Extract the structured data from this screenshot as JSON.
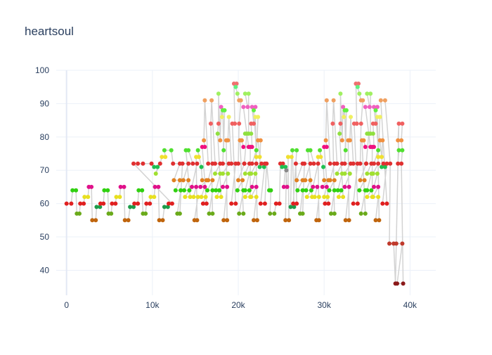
{
  "chart_data": {
    "type": "scatter",
    "title": "heartsoul",
    "xlabel": "",
    "ylabel": "",
    "xlim": [
      -1200,
      43000
    ],
    "ylim": [
      32.5,
      100
    ],
    "x_ticks": [
      0,
      10000,
      20000,
      30000,
      40000
    ],
    "x_tick_labels": [
      "0",
      "10k",
      "20k",
      "30k",
      "40k"
    ],
    "y_ticks": [
      40,
      50,
      60,
      70,
      80,
      90,
      100
    ],
    "y_tick_labels": [
      "40",
      "50",
      "60",
      "70",
      "80",
      "90",
      "100"
    ],
    "grid": true,
    "legend": "none",
    "mode": "lines+markers",
    "line_color": "#d3d3d3",
    "note_colors": {
      "36": "#8b1a1a",
      "48": "#c0392b",
      "55": "#c0650d",
      "57": "#6aaa1a",
      "59": "#1e9c4a",
      "60": "#e02020",
      "62": "#e8e020",
      "64": "#30d010",
      "65": "#e0108a",
      "67": "#e08020",
      "69": "#a0e030",
      "71": "#20c050",
      "72": "#e03030",
      "74": "#f0e030",
      "76": "#50e030",
      "77": "#f01080",
      "79": "#f09040",
      "81": "#90e040",
      "84": "#f06060",
      "86": "#f0f060",
      "88": "#60f040",
      "89": "#f060c0",
      "91": "#f0a060",
      "93": "#a0f060",
      "95": "#60f080",
      "96": "#f07070"
    },
    "points": [
      [
        0,
        60
      ],
      [
        550,
        60
      ],
      [
        700,
        64
      ],
      [
        1100,
        64
      ],
      [
        1200,
        57
      ],
      [
        1500,
        57
      ],
      [
        1600,
        60
      ],
      [
        2000,
        60
      ],
      [
        2100,
        62
      ],
      [
        2500,
        62
      ],
      [
        2600,
        65
      ],
      [
        2900,
        65
      ],
      [
        3000,
        55
      ],
      [
        3400,
        55
      ],
      [
        3500,
        59
      ],
      [
        3900,
        59
      ],
      [
        3950,
        60
      ],
      [
        4300,
        60
      ],
      [
        4400,
        64
      ],
      [
        4800,
        64
      ],
      [
        4900,
        57
      ],
      [
        5200,
        57
      ],
      [
        5300,
        60
      ],
      [
        5700,
        60
      ],
      [
        5800,
        62
      ],
      [
        6200,
        62
      ],
      [
        6300,
        65
      ],
      [
        6700,
        65
      ],
      [
        6800,
        55
      ],
      [
        7200,
        55
      ],
      [
        7400,
        59
      ],
      [
        7800,
        59
      ],
      [
        7900,
        60
      ],
      [
        8300,
        60
      ],
      [
        8400,
        64
      ],
      [
        8800,
        64
      ],
      [
        8900,
        57
      ],
      [
        9200,
        57
      ],
      [
        9300,
        60
      ],
      [
        9700,
        60
      ],
      [
        9800,
        62
      ],
      [
        10200,
        62
      ],
      [
        10300,
        65
      ],
      [
        10700,
        65
      ],
      [
        10800,
        55
      ],
      [
        11200,
        55
      ],
      [
        11400,
        59
      ],
      [
        11800,
        59
      ],
      [
        11900,
        60
      ],
      [
        12300,
        60
      ],
      [
        7800,
        72
      ],
      [
        8300,
        72
      ],
      [
        8900,
        72
      ],
      [
        9900,
        72
      ],
      [
        10200,
        71
      ],
      [
        10600,
        71
      ],
      [
        10400,
        69
      ],
      [
        10900,
        72
      ],
      [
        11100,
        74
      ],
      [
        11500,
        74
      ],
      [
        11400,
        76
      ],
      [
        12200,
        76
      ],
      [
        12400,
        72
      ],
      [
        13200,
        72
      ],
      [
        12500,
        67
      ],
      [
        13200,
        67
      ],
      [
        12700,
        64
      ],
      [
        13300,
        64
      ],
      [
        12900,
        57
      ],
      [
        13200,
        57
      ],
      [
        13500,
        72
      ],
      [
        14200,
        72
      ],
      [
        13600,
        67
      ],
      [
        14200,
        67
      ],
      [
        13700,
        64
      ],
      [
        14300,
        64
      ],
      [
        13800,
        62
      ],
      [
        14400,
        62
      ],
      [
        13900,
        76
      ],
      [
        14200,
        76
      ],
      [
        14700,
        72
      ],
      [
        15200,
        72
      ],
      [
        14600,
        65
      ],
      [
        15100,
        65
      ],
      [
        14800,
        62
      ],
      [
        15300,
        62
      ],
      [
        14900,
        55
      ],
      [
        15200,
        55
      ],
      [
        15100,
        74
      ],
      [
        15400,
        74
      ],
      [
        15300,
        76
      ],
      [
        15700,
        71
      ],
      [
        15800,
        67
      ],
      [
        16300,
        67
      ],
      [
        15600,
        65
      ],
      [
        16100,
        65
      ],
      [
        15700,
        62
      ],
      [
        16200,
        62
      ],
      [
        15900,
        60
      ],
      [
        16300,
        60
      ],
      [
        15800,
        77
      ],
      [
        16100,
        77
      ],
      [
        16000,
        79
      ],
      [
        16100,
        91
      ],
      [
        16500,
        72
      ],
      [
        17000,
        72
      ],
      [
        16500,
        67
      ],
      [
        17000,
        67
      ],
      [
        16400,
        64
      ],
      [
        17000,
        64
      ],
      [
        16600,
        57
      ],
      [
        17000,
        57
      ],
      [
        16800,
        84
      ],
      [
        16900,
        91
      ],
      [
        17300,
        72
      ],
      [
        17900,
        72
      ],
      [
        17300,
        69
      ],
      [
        17900,
        69
      ],
      [
        17400,
        64
      ],
      [
        17800,
        64
      ],
      [
        17500,
        62
      ],
      [
        18000,
        62
      ],
      [
        17600,
        81
      ],
      [
        17700,
        84
      ],
      [
        17700,
        93
      ],
      [
        17900,
        79
      ],
      [
        18000,
        89
      ],
      [
        18100,
        86
      ],
      [
        18200,
        88
      ],
      [
        18300,
        76
      ],
      [
        18400,
        88
      ],
      [
        18200,
        72
      ],
      [
        18900,
        72
      ],
      [
        18200,
        69
      ],
      [
        18800,
        69
      ],
      [
        18200,
        65
      ],
      [
        18700,
        65
      ],
      [
        18300,
        55
      ],
      [
        18700,
        55
      ],
      [
        18600,
        79
      ],
      [
        18800,
        79
      ],
      [
        18900,
        86
      ],
      [
        19200,
        72
      ],
      [
        19700,
        72
      ],
      [
        19200,
        60
      ],
      [
        19700,
        60
      ],
      [
        19300,
        84
      ],
      [
        19600,
        84
      ],
      [
        19500,
        96
      ],
      [
        19800,
        96
      ],
      [
        19700,
        95
      ],
      [
        19900,
        93
      ],
      [
        20100,
        91
      ],
      [
        20300,
        91
      ],
      [
        20100,
        84
      ],
      [
        20000,
        72
      ],
      [
        20700,
        72
      ],
      [
        20000,
        67
      ],
      [
        20500,
        67
      ],
      [
        19900,
        64
      ],
      [
        20600,
        64
      ],
      [
        20100,
        57
      ],
      [
        20600,
        57
      ],
      [
        20200,
        79
      ],
      [
        20400,
        79
      ],
      [
        20600,
        77
      ],
      [
        21200,
        77
      ],
      [
        20600,
        89
      ],
      [
        21100,
        89
      ],
      [
        20800,
        93
      ],
      [
        21200,
        93
      ],
      [
        21200,
        81
      ],
      [
        21500,
        81
      ],
      [
        20800,
        81
      ],
      [
        21000,
        81
      ],
      [
        20700,
        72
      ],
      [
        21300,
        72
      ],
      [
        20800,
        69
      ],
      [
        21300,
        69
      ],
      [
        20800,
        64
      ],
      [
        21300,
        64
      ],
      [
        20800,
        62
      ],
      [
        21400,
        62
      ],
      [
        21400,
        77
      ],
      [
        21600,
        77
      ],
      [
        21500,
        84
      ],
      [
        21800,
        84
      ],
      [
        21600,
        89
      ],
      [
        22000,
        89
      ],
      [
        21800,
        88
      ],
      [
        22100,
        76
      ],
      [
        21600,
        72
      ],
      [
        22100,
        72
      ],
      [
        21500,
        69
      ],
      [
        22000,
        69
      ],
      [
        21600,
        65
      ],
      [
        22100,
        65
      ],
      [
        21500,
        62
      ],
      [
        22100,
        62
      ],
      [
        21800,
        55
      ],
      [
        22200,
        55
      ],
      [
        22000,
        86
      ],
      [
        22300,
        86
      ],
      [
        22100,
        74
      ],
      [
        22500,
        74
      ],
      [
        22300,
        79
      ],
      [
        22600,
        79
      ],
      [
        22500,
        71
      ],
      [
        23000,
        71
      ],
      [
        22700,
        72
      ],
      [
        23100,
        72
      ],
      [
        22600,
        60
      ],
      [
        23100,
        60
      ],
      [
        23300,
        72
      ],
      [
        23600,
        64
      ],
      [
        23800,
        64
      ],
      [
        23700,
        57
      ],
      [
        24200,
        57
      ],
      [
        24400,
        60
      ],
      [
        24800,
        60
      ],
      [
        24900,
        72
      ],
      [
        25200,
        72
      ],
      [
        25100,
        71
      ],
      [
        25500,
        71
      ],
      [
        25300,
        65
      ],
      [
        25700,
        65
      ],
      [
        25600,
        70
      ],
      [
        25500,
        55
      ],
      [
        25900,
        55
      ],
      [
        25800,
        74
      ],
      [
        26200,
        74
      ],
      [
        26100,
        59
      ],
      [
        26500,
        59
      ],
      [
        26300,
        76
      ],
      [
        26800,
        76
      ],
      [
        26400,
        60
      ],
      [
        26800,
        60
      ],
      [
        26700,
        72
      ],
      [
        27500,
        72
      ],
      [
        26800,
        67
      ],
      [
        27500,
        67
      ],
      [
        26900,
        64
      ],
      [
        27500,
        64
      ],
      [
        27200,
        57
      ],
      [
        27500,
        57
      ],
      [
        27700,
        72
      ],
      [
        28400,
        72
      ],
      [
        27800,
        67
      ],
      [
        28400,
        67
      ],
      [
        27900,
        64
      ],
      [
        28500,
        64
      ],
      [
        28000,
        62
      ],
      [
        28600,
        62
      ],
      [
        28100,
        76
      ],
      [
        28400,
        76
      ],
      [
        28800,
        72
      ],
      [
        29300,
        72
      ],
      [
        28700,
        65
      ],
      [
        29200,
        65
      ],
      [
        28900,
        62
      ],
      [
        29400,
        62
      ],
      [
        29100,
        55
      ],
      [
        29400,
        55
      ],
      [
        29300,
        74
      ],
      [
        29600,
        74
      ],
      [
        29500,
        76
      ],
      [
        29900,
        71
      ],
      [
        30000,
        67
      ],
      [
        30500,
        67
      ],
      [
        29800,
        65
      ],
      [
        30300,
        65
      ],
      [
        30000,
        62
      ],
      [
        30400,
        62
      ],
      [
        30100,
        60
      ],
      [
        30500,
        60
      ],
      [
        30000,
        77
      ],
      [
        30300,
        77
      ],
      [
        30200,
        79
      ],
      [
        30300,
        91
      ],
      [
        30700,
        72
      ],
      [
        31200,
        72
      ],
      [
        30700,
        67
      ],
      [
        31200,
        67
      ],
      [
        30600,
        64
      ],
      [
        31200,
        64
      ],
      [
        30800,
        57
      ],
      [
        31200,
        57
      ],
      [
        31000,
        84
      ],
      [
        31100,
        91
      ],
      [
        31500,
        72
      ],
      [
        32100,
        72
      ],
      [
        31500,
        69
      ],
      [
        32100,
        69
      ],
      [
        31600,
        64
      ],
      [
        32000,
        64
      ],
      [
        31700,
        62
      ],
      [
        32200,
        62
      ],
      [
        31800,
        81
      ],
      [
        31900,
        84
      ],
      [
        31900,
        93
      ],
      [
        32100,
        79
      ],
      [
        32200,
        89
      ],
      [
        32300,
        86
      ],
      [
        32400,
        88
      ],
      [
        32500,
        76
      ],
      [
        32600,
        88
      ],
      [
        32400,
        72
      ],
      [
        33100,
        72
      ],
      [
        32400,
        69
      ],
      [
        33000,
        69
      ],
      [
        32400,
        65
      ],
      [
        32900,
        65
      ],
      [
        32500,
        55
      ],
      [
        32900,
        55
      ],
      [
        32800,
        79
      ],
      [
        33000,
        79
      ],
      [
        33100,
        86
      ],
      [
        33400,
        72
      ],
      [
        33900,
        72
      ],
      [
        33400,
        60
      ],
      [
        33900,
        60
      ],
      [
        33500,
        84
      ],
      [
        33800,
        84
      ],
      [
        33700,
        96
      ],
      [
        34000,
        96
      ],
      [
        33900,
        95
      ],
      [
        34100,
        93
      ],
      [
        34300,
        91
      ],
      [
        34500,
        91
      ],
      [
        34300,
        84
      ],
      [
        34200,
        72
      ],
      [
        34900,
        72
      ],
      [
        34200,
        67
      ],
      [
        34700,
        67
      ],
      [
        34100,
        64
      ],
      [
        34800,
        64
      ],
      [
        34300,
        57
      ],
      [
        34800,
        57
      ],
      [
        34400,
        79
      ],
      [
        34600,
        79
      ],
      [
        34800,
        77
      ],
      [
        35400,
        77
      ],
      [
        34800,
        89
      ],
      [
        35300,
        89
      ],
      [
        35000,
        93
      ],
      [
        35400,
        93
      ],
      [
        35400,
        81
      ],
      [
        35700,
        81
      ],
      [
        35000,
        81
      ],
      [
        35200,
        81
      ],
      [
        34900,
        72
      ],
      [
        35500,
        72
      ],
      [
        35000,
        69
      ],
      [
        35500,
        69
      ],
      [
        35000,
        64
      ],
      [
        35500,
        64
      ],
      [
        35000,
        62
      ],
      [
        35600,
        62
      ],
      [
        35600,
        77
      ],
      [
        35800,
        77
      ],
      [
        35700,
        84
      ],
      [
        36000,
        84
      ],
      [
        35800,
        89
      ],
      [
        36200,
        89
      ],
      [
        36000,
        88
      ],
      [
        36300,
        76
      ],
      [
        35800,
        72
      ],
      [
        36300,
        72
      ],
      [
        35700,
        69
      ],
      [
        36200,
        69
      ],
      [
        35800,
        65
      ],
      [
        36300,
        65
      ],
      [
        35700,
        62
      ],
      [
        36300,
        62
      ],
      [
        36000,
        55
      ],
      [
        36400,
        55
      ],
      [
        36200,
        86
      ],
      [
        36500,
        86
      ],
      [
        36300,
        74
      ],
      [
        36700,
        74
      ],
      [
        36500,
        79
      ],
      [
        36800,
        79
      ],
      [
        36700,
        71
      ],
      [
        37100,
        71
      ],
      [
        36900,
        72
      ],
      [
        37300,
        72
      ],
      [
        36800,
        60
      ],
      [
        37300,
        60
      ],
      [
        36600,
        91
      ],
      [
        37100,
        91
      ],
      [
        37700,
        72
      ],
      [
        37600,
        48
      ],
      [
        38100,
        48
      ],
      [
        38300,
        36
      ],
      [
        38600,
        72
      ],
      [
        38700,
        76
      ],
      [
        38600,
        79
      ],
      [
        38700,
        84
      ],
      [
        38400,
        48
      ],
      [
        39100,
        48
      ],
      [
        38500,
        36
      ],
      [
        39200,
        36
      ],
      [
        39000,
        72
      ],
      [
        39100,
        76
      ],
      [
        39000,
        79
      ],
      [
        39100,
        84
      ]
    ]
  }
}
